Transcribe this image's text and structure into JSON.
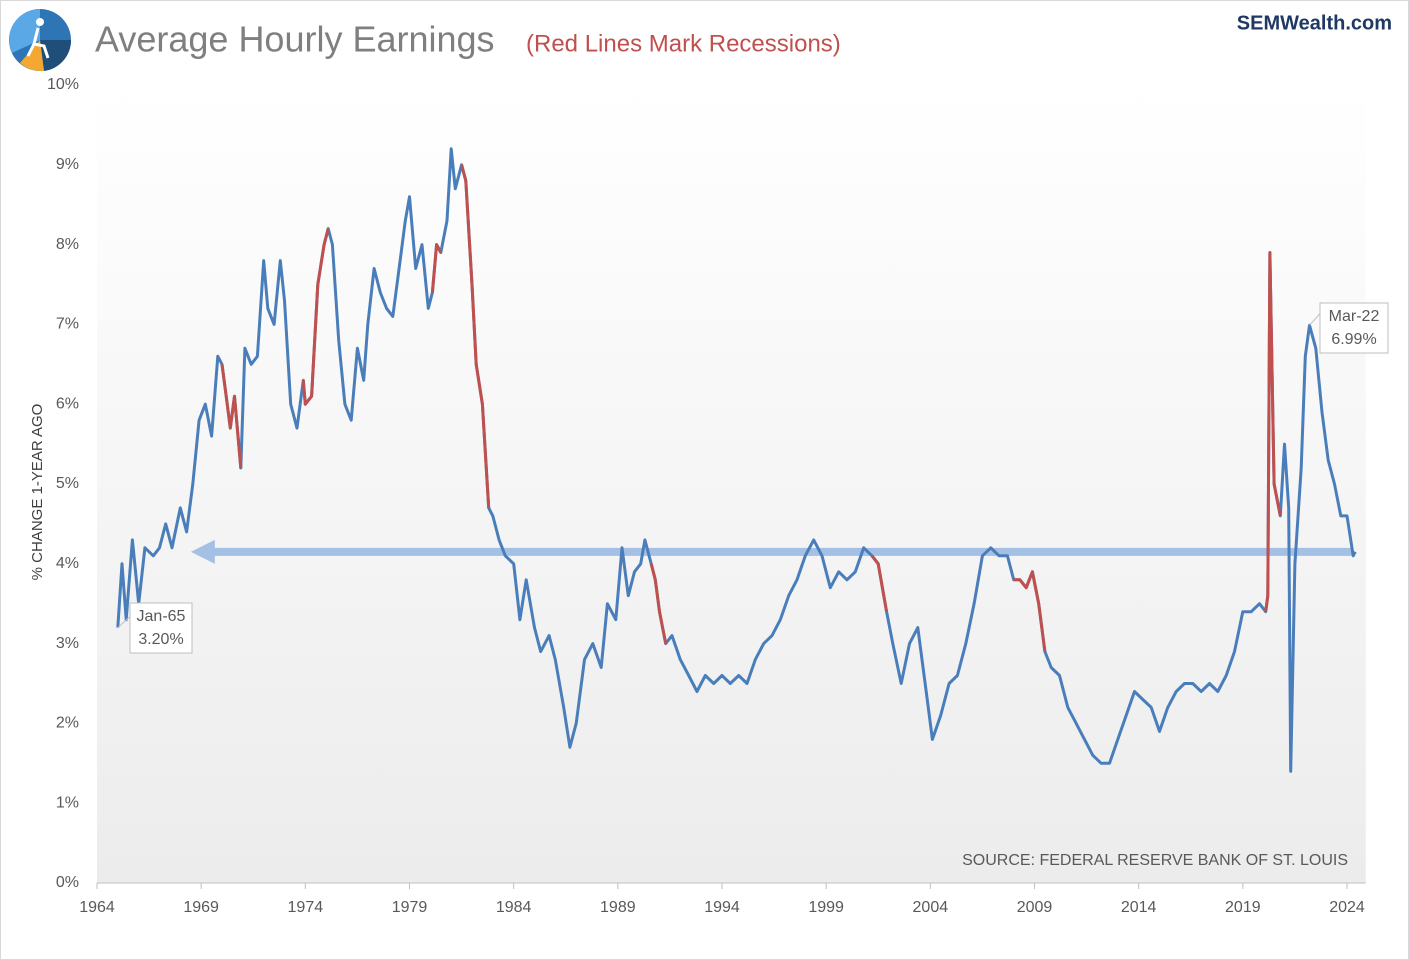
{
  "chart_data": {
    "type": "line",
    "title": "Average Hourly Earnings",
    "subtitle": "(Red Lines Mark Recessions)",
    "brand": "SEMWealth.com",
    "y_label": "% CHANGE 1-YEAR AGO",
    "source": "SOURCE:  FEDERAL RESERVE BANK OF ST. LOUIS",
    "color": "#4a7ebb",
    "recession_color": "#c0504d",
    "recessions": [
      [
        1969.95,
        1970.95
      ],
      [
        1973.9,
        1975.2
      ],
      [
        1980.0,
        1980.6
      ],
      [
        1981.5,
        1982.9
      ],
      [
        1990.55,
        1991.3
      ],
      [
        2001.2,
        2001.9
      ],
      [
        2007.95,
        2009.5
      ],
      [
        2020.1,
        2020.9
      ]
    ],
    "x": [
      1965.0,
      1965.2,
      1965.4,
      1965.7,
      1966.0,
      1966.3,
      1966.7,
      1967.0,
      1967.3,
      1967.6,
      1968.0,
      1968.3,
      1968.6,
      1968.9,
      1969.2,
      1969.5,
      1969.8,
      1970.0,
      1970.2,
      1970.4,
      1970.6,
      1970.9,
      1971.1,
      1971.4,
      1971.7,
      1972.0,
      1972.2,
      1972.5,
      1972.8,
      1973.0,
      1973.3,
      1973.6,
      1973.9,
      1974.0,
      1974.3,
      1974.6,
      1974.9,
      1975.1,
      1975.3,
      1975.6,
      1975.9,
      1976.2,
      1976.5,
      1976.8,
      1977.0,
      1977.3,
      1977.6,
      1977.9,
      1978.2,
      1978.5,
      1978.8,
      1979.0,
      1979.3,
      1979.6,
      1979.9,
      1980.1,
      1980.3,
      1980.5,
      1980.8,
      1981.0,
      1981.2,
      1981.5,
      1981.7,
      1982.0,
      1982.2,
      1982.5,
      1982.8,
      1983.0,
      1983.3,
      1983.6,
      1984.0,
      1984.3,
      1984.6,
      1985.0,
      1985.3,
      1985.7,
      1986.0,
      1986.4,
      1986.7,
      1987.0,
      1987.4,
      1987.8,
      1988.2,
      1988.5,
      1988.9,
      1989.2,
      1989.5,
      1989.8,
      1990.1,
      1990.3,
      1990.6,
      1990.8,
      1991.0,
      1991.3,
      1991.6,
      1992.0,
      1992.4,
      1992.8,
      1993.2,
      1993.6,
      1994.0,
      1994.4,
      1994.8,
      1995.2,
      1995.6,
      1996.0,
      1996.4,
      1996.8,
      1997.2,
      1997.6,
      1998.0,
      1998.4,
      1998.8,
      1999.2,
      1999.6,
      2000.0,
      2000.4,
      2000.8,
      2001.2,
      2001.5,
      2001.9,
      2002.2,
      2002.6,
      2003.0,
      2003.4,
      2003.8,
      2004.1,
      2004.5,
      2004.9,
      2005.3,
      2005.7,
      2006.1,
      2006.5,
      2006.9,
      2007.3,
      2007.7,
      2008.0,
      2008.3,
      2008.6,
      2008.9,
      2009.2,
      2009.5,
      2009.8,
      2010.2,
      2010.6,
      2011.0,
      2011.4,
      2011.8,
      2012.2,
      2012.6,
      2013.0,
      2013.4,
      2013.8,
      2014.2,
      2014.6,
      2015.0,
      2015.4,
      2015.8,
      2016.2,
      2016.6,
      2017.0,
      2017.4,
      2017.8,
      2018.2,
      2018.6,
      2019.0,
      2019.4,
      2019.8,
      2020.1,
      2020.2,
      2020.3,
      2020.5,
      2020.8,
      2021.0,
      2021.2,
      2021.3,
      2021.5,
      2021.8,
      2022.0,
      2022.2,
      2022.5,
      2022.8,
      2023.1,
      2023.4,
      2023.7,
      2024.0,
      2024.3,
      2024.4
    ],
    "values": [
      3.2,
      4.0,
      3.3,
      4.3,
      3.5,
      4.2,
      4.1,
      4.2,
      4.5,
      4.2,
      4.7,
      4.4,
      5.0,
      5.8,
      6.0,
      5.6,
      6.6,
      6.5,
      6.1,
      5.7,
      6.1,
      5.2,
      6.7,
      6.5,
      6.6,
      7.8,
      7.2,
      7.0,
      7.8,
      7.3,
      6.0,
      5.7,
      6.3,
      6.0,
      6.1,
      7.5,
      8.0,
      8.2,
      8.0,
      6.8,
      6.0,
      5.8,
      6.7,
      6.3,
      7.0,
      7.7,
      7.4,
      7.2,
      7.1,
      7.7,
      8.3,
      8.6,
      7.7,
      8.0,
      7.2,
      7.4,
      8.0,
      7.9,
      8.3,
      9.2,
      8.7,
      9.0,
      8.8,
      7.5,
      6.5,
      6.0,
      4.7,
      4.6,
      4.3,
      4.1,
      4.0,
      3.3,
      3.8,
      3.2,
      2.9,
      3.1,
      2.8,
      2.2,
      1.7,
      2.0,
      2.8,
      3.0,
      2.7,
      3.5,
      3.3,
      4.2,
      3.6,
      3.9,
      4.0,
      4.3,
      4.0,
      3.8,
      3.4,
      3.0,
      3.1,
      2.8,
      2.6,
      2.4,
      2.6,
      2.5,
      2.6,
      2.5,
      2.6,
      2.5,
      2.8,
      3.0,
      3.1,
      3.3,
      3.6,
      3.8,
      4.1,
      4.3,
      4.1,
      3.7,
      3.9,
      3.8,
      3.9,
      4.2,
      4.1,
      4.0,
      3.4,
      3.0,
      2.5,
      3.0,
      3.2,
      2.4,
      1.8,
      2.1,
      2.5,
      2.6,
      3.0,
      3.5,
      4.1,
      4.2,
      4.1,
      4.1,
      3.8,
      3.8,
      3.7,
      3.9,
      3.5,
      2.9,
      2.7,
      2.6,
      2.2,
      2.0,
      1.8,
      1.6,
      1.5,
      1.5,
      1.8,
      2.1,
      2.4,
      2.3,
      2.2,
      1.9,
      2.2,
      2.4,
      2.5,
      2.5,
      2.4,
      2.5,
      2.4,
      2.6,
      2.9,
      3.4,
      3.4,
      3.5,
      3.4,
      3.6,
      7.9,
      5.0,
      4.6,
      5.5,
      4.7,
      1.4,
      4.0,
      5.2,
      6.6,
      6.99,
      6.7,
      5.9,
      5.3,
      5.0,
      4.6,
      4.6,
      4.1,
      4.15
    ],
    "reference_line": {
      "value": 4.15,
      "from": 2024.3,
      "to": 1968.6
    },
    "annotations": [
      {
        "label": "Jan-65",
        "value_label": "3.20%",
        "x": 1965.0,
        "y": 3.2
      },
      {
        "label": "Mar-22",
        "value_label": "6.99%",
        "x": 2022.2,
        "y": 6.99
      }
    ],
    "xlim": [
      1964,
      2024.9
    ],
    "xticks": [
      1964,
      1969,
      1974,
      1979,
      1984,
      1989,
      1994,
      1999,
      2004,
      2009,
      2014,
      2019,
      2024
    ],
    "ylim": [
      0,
      10
    ],
    "yticks": [
      {
        "value": 0,
        "label": "0%"
      },
      {
        "value": 1,
        "label": "1%"
      },
      {
        "value": 2,
        "label": "2%"
      },
      {
        "value": 3,
        "label": "3%"
      },
      {
        "value": 4,
        "label": "4%"
      },
      {
        "value": 5,
        "label": "5%"
      },
      {
        "value": 6,
        "label": "6%"
      },
      {
        "value": 7,
        "label": "7%"
      },
      {
        "value": 8,
        "label": "8%"
      },
      {
        "value": 9,
        "label": "9%"
      },
      {
        "value": 10,
        "label": "10%"
      }
    ]
  }
}
